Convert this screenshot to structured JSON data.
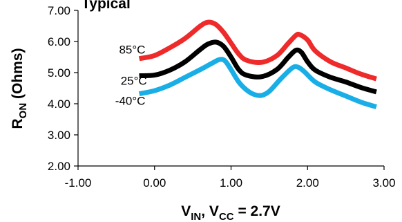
{
  "chart_data": {
    "type": "line",
    "title": "Typical",
    "xlabel": {
      "main": "V",
      "sub": "IN",
      "sep": ", V",
      "sub2": "CC",
      "tail": " = 2.7V"
    },
    "ylabel": {
      "main": "R",
      "sub": "ON",
      "tail": " (Ohms)"
    },
    "xlim": [
      -1.0,
      3.0
    ],
    "ylim": [
      2.0,
      7.0
    ],
    "xticks": [
      -1.0,
      0.0,
      1.0,
      2.0,
      3.0
    ],
    "yticks": [
      2.0,
      3.0,
      4.0,
      5.0,
      6.0,
      7.0
    ],
    "xtick_labels": [
      "-1.00",
      "0.00",
      "1.00",
      "2.00",
      "3.00"
    ],
    "ytick_labels": [
      "2.00",
      "3.00",
      "4.00",
      "5.00",
      "6.00",
      "7.00"
    ],
    "grid": false,
    "series": [
      {
        "name": "85°C",
        "color": "#ee2a2a",
        "points": [
          [
            -0.2,
            5.45
          ],
          [
            0.0,
            5.55
          ],
          [
            0.2,
            5.8
          ],
          [
            0.4,
            6.1
          ],
          [
            0.6,
            6.5
          ],
          [
            0.7,
            6.62
          ],
          [
            0.8,
            6.55
          ],
          [
            0.9,
            6.3
          ],
          [
            1.0,
            5.95
          ],
          [
            1.1,
            5.6
          ],
          [
            1.2,
            5.4
          ],
          [
            1.4,
            5.33
          ],
          [
            1.6,
            5.55
          ],
          [
            1.75,
            5.95
          ],
          [
            1.85,
            6.2
          ],
          [
            1.9,
            6.22
          ],
          [
            2.0,
            6.05
          ],
          [
            2.1,
            5.7
          ],
          [
            2.3,
            5.35
          ],
          [
            2.5,
            5.15
          ],
          [
            2.7,
            4.95
          ],
          [
            2.9,
            4.8
          ]
        ]
      },
      {
        "name": "25°C",
        "color": "#000000",
        "points": [
          [
            -0.2,
            4.9
          ],
          [
            0.0,
            4.92
          ],
          [
            0.2,
            5.08
          ],
          [
            0.4,
            5.35
          ],
          [
            0.6,
            5.75
          ],
          [
            0.7,
            5.92
          ],
          [
            0.8,
            5.98
          ],
          [
            0.9,
            5.85
          ],
          [
            1.0,
            5.5
          ],
          [
            1.1,
            5.1
          ],
          [
            1.2,
            4.92
          ],
          [
            1.4,
            4.87
          ],
          [
            1.6,
            5.1
          ],
          [
            1.75,
            5.5
          ],
          [
            1.85,
            5.72
          ],
          [
            1.92,
            5.65
          ],
          [
            2.0,
            5.35
          ],
          [
            2.1,
            5.08
          ],
          [
            2.3,
            4.85
          ],
          [
            2.5,
            4.7
          ],
          [
            2.7,
            4.52
          ],
          [
            2.9,
            4.38
          ]
        ]
      },
      {
        "name": "-40°C",
        "color": "#1aaee6",
        "points": [
          [
            -0.2,
            4.32
          ],
          [
            0.0,
            4.42
          ],
          [
            0.2,
            4.6
          ],
          [
            0.4,
            4.85
          ],
          [
            0.6,
            5.1
          ],
          [
            0.75,
            5.3
          ],
          [
            0.85,
            5.42
          ],
          [
            0.92,
            5.38
          ],
          [
            1.0,
            5.1
          ],
          [
            1.1,
            4.7
          ],
          [
            1.2,
            4.45
          ],
          [
            1.3,
            4.3
          ],
          [
            1.4,
            4.27
          ],
          [
            1.5,
            4.4
          ],
          [
            1.65,
            4.8
          ],
          [
            1.8,
            5.15
          ],
          [
            1.87,
            5.18
          ],
          [
            1.95,
            5.05
          ],
          [
            2.1,
            4.7
          ],
          [
            2.3,
            4.45
          ],
          [
            2.5,
            4.25
          ],
          [
            2.7,
            4.05
          ],
          [
            2.9,
            3.9
          ]
        ]
      }
    ],
    "labels": [
      {
        "text": "85°C",
        "x": -0.12,
        "y": 5.75
      },
      {
        "text": "25°C",
        "x": -0.1,
        "y": 4.75
      },
      {
        "text": "-40°C",
        "x": -0.12,
        "y": 4.1
      }
    ]
  }
}
